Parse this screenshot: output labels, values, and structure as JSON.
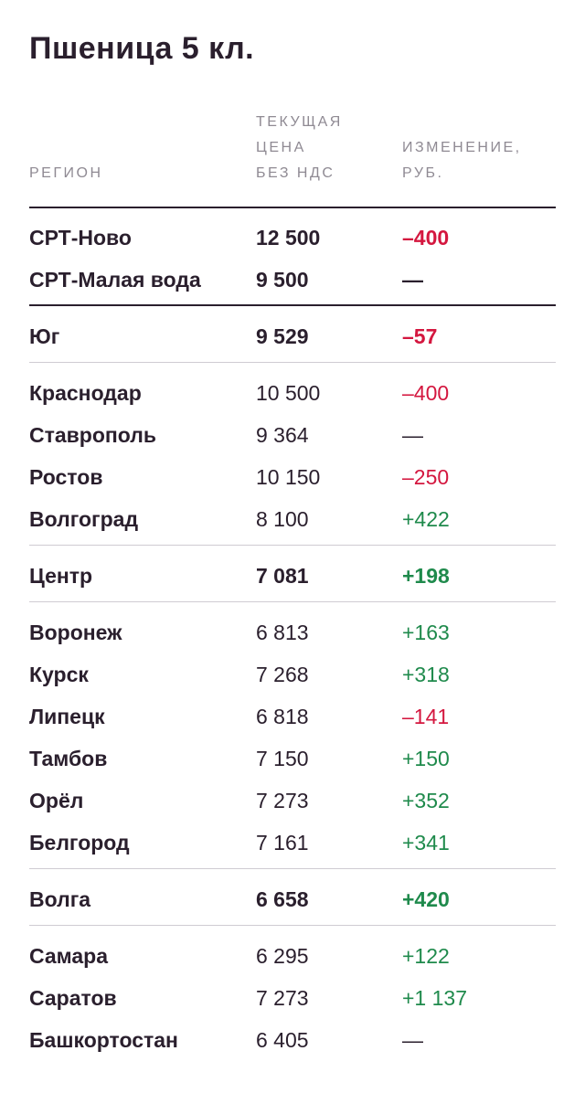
{
  "title": "Пшеница 5 кл.",
  "columns": {
    "region": "РЕГИОН",
    "price_line1": "ТЕКУЩАЯ",
    "price_line2": "ЦЕНА",
    "price_line3": "БЕЗ НДС",
    "change_line1": "ИЗМЕНЕНИЕ,",
    "change_line2": "РУБ."
  },
  "colors": {
    "negative": "#d4173f",
    "positive": "#1f8a4c",
    "text": "#2a1f2d",
    "header": "#8f8a93"
  },
  "rows": [
    {
      "name": "СРТ-Ново",
      "price": "12 500",
      "change": "–400",
      "sign": "neg",
      "bold": true
    },
    {
      "name": "СРТ-Малая вода",
      "price": "9 500",
      "change": "—",
      "sign": "neu",
      "bold": true
    },
    {
      "name": "Юг",
      "price": "9 529",
      "change": "–57",
      "sign": "neg",
      "bold": true
    },
    {
      "name": "Краснодар",
      "price": "10 500",
      "change": "–400",
      "sign": "neg",
      "bold": false
    },
    {
      "name": "Ставрополь",
      "price": "9 364",
      "change": "—",
      "sign": "neu",
      "bold": false
    },
    {
      "name": "Ростов",
      "price": "10 150",
      "change": "–250",
      "sign": "neg",
      "bold": false
    },
    {
      "name": "Волгоград",
      "price": "8 100",
      "change": "+422",
      "sign": "pos",
      "bold": false
    },
    {
      "name": "Центр",
      "price": "7 081",
      "change": "+198",
      "sign": "pos",
      "bold": true
    },
    {
      "name": "Воронеж",
      "price": "6 813",
      "change": "+163",
      "sign": "pos",
      "bold": false
    },
    {
      "name": "Курск",
      "price": "7 268",
      "change": "+318",
      "sign": "pos",
      "bold": false
    },
    {
      "name": "Липецк",
      "price": "6 818",
      "change": "–141",
      "sign": "neg",
      "bold": false
    },
    {
      "name": "Тамбов",
      "price": "7 150",
      "change": "+150",
      "sign": "pos",
      "bold": false
    },
    {
      "name": "Орёл",
      "price": "7 273",
      "change": "+352",
      "sign": "pos",
      "bold": false
    },
    {
      "name": "Белгород",
      "price": "7 161",
      "change": "+341",
      "sign": "pos",
      "bold": false
    },
    {
      "name": "Волга",
      "price": "6 658",
      "change": "+420",
      "sign": "pos",
      "bold": true
    },
    {
      "name": "Самара",
      "price": "6 295",
      "change": "+122",
      "sign": "pos",
      "bold": false
    },
    {
      "name": "Саратов",
      "price": "7 273",
      "change": "+1 137",
      "sign": "pos",
      "bold": false
    },
    {
      "name": "Башкортостан",
      "price": "6 405",
      "change": "—",
      "sign": "neu",
      "bold": false
    }
  ]
}
